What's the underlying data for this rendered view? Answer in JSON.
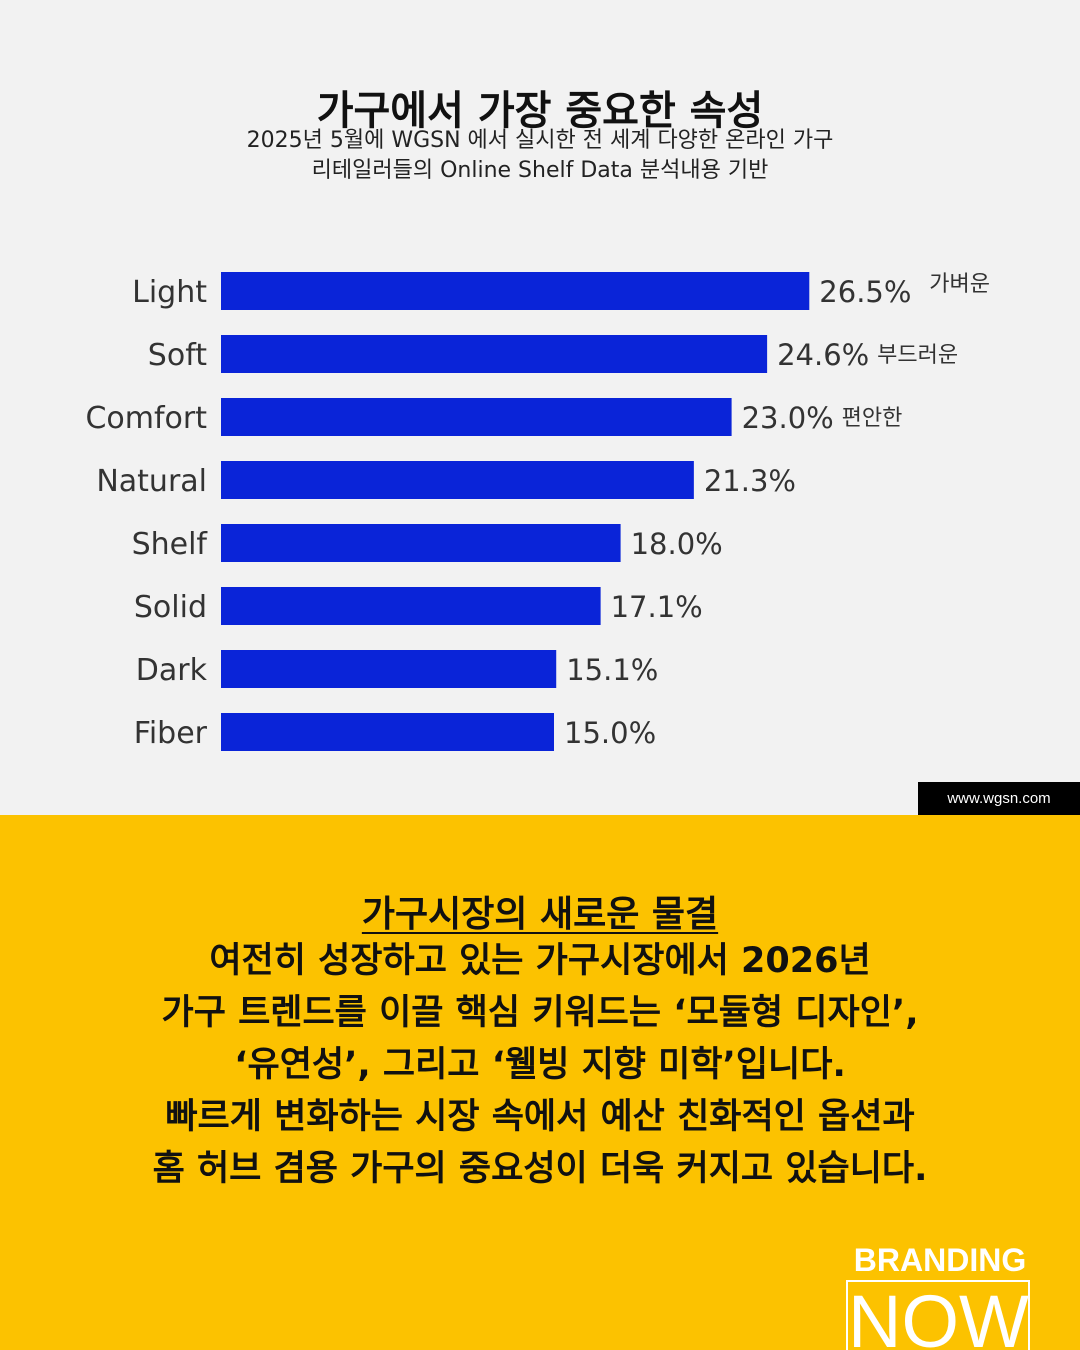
{
  "header": {
    "title": "가구에서 가장 중요한 속성",
    "subtitle_line1": "2025년 5월에 WGSN 에서 실시한 전 세계 다양한 온라인 가구",
    "subtitle_line2": "리테일러들의 Online Shelf Data 분석내용 기반"
  },
  "chart_data": {
    "type": "bar",
    "orientation": "horizontal",
    "categories": [
      "Light",
      "Soft",
      "Comfort",
      "Natural",
      "Shelf",
      "Solid",
      "Dark",
      "Fiber"
    ],
    "values": [
      26.5,
      24.6,
      23.0,
      21.3,
      18.0,
      17.1,
      15.1,
      15.0
    ],
    "value_labels": [
      "26.5%",
      "24.6%",
      "23.0%",
      "21.3%",
      "18.0%",
      "17.1%",
      "15.1%",
      "15.0%"
    ],
    "annotations": [
      "가벼운",
      "부드러운",
      "편안한",
      "",
      "",
      "",
      "",
      ""
    ],
    "bar_color": "#0a24d8",
    "grid": false
  },
  "source": "www.wgsn.com",
  "bottom": {
    "heading": "가구시장의 새로운 물결",
    "lines": [
      "여전히 성장하고 있는 가구시장에서 2026년",
      "가구 트렌드를 이끌 핵심 키워드는 ‘모듈형 디자인’,",
      "‘유연성’, 그리고 ‘웰빙 지향 미학’입니다.",
      "빠르게 변화하는 시장 속에서 예산 친화적인 옵션과",
      "홈 허브 겸용 가구의 중요성이 더욱 커지고 있습니다."
    ],
    "background_color": "#fcc200"
  },
  "brand": {
    "line1": "BRANDING",
    "line2": "NOW"
  }
}
